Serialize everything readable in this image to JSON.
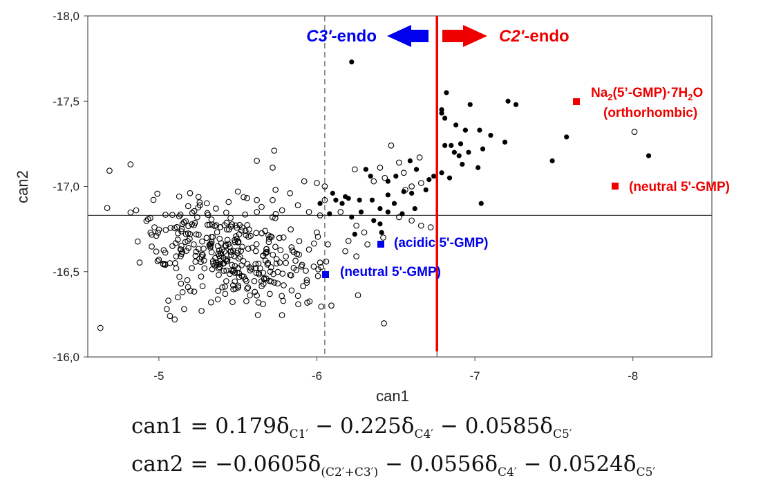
{
  "chart_data": {
    "type": "scatter",
    "xlabel": "can1",
    "ylabel": "can2",
    "xlim": [
      -4.55,
      -8.5
    ],
    "ylim": [
      -16.0,
      -18.0
    ],
    "x_reversed": true,
    "y_reversed": true,
    "x_ticks": [
      "-5",
      "-6",
      "-7",
      "-8"
    ],
    "y_ticks": [
      "-18,0",
      "-17,5",
      "-17,0",
      "-16,5",
      "-16,0"
    ],
    "x_tick_values": [
      -5,
      -6,
      -7,
      -8
    ],
    "y_tick_values": [
      -18.0,
      -17.5,
      -17.0,
      -16.5,
      -16.0
    ],
    "reference_lines": {
      "horizontal_y": -16.83,
      "vertical_solid_gray_x": -6.76,
      "vertical_dashed_x": -6.05,
      "vertical_red_x": -6.76
    },
    "arrows": {
      "left_label_italic": "C3'",
      "left_label_rest": "-endo",
      "left_color": "#0000ee",
      "right_label_italic": "C2'",
      "right_label_rest": "-endo",
      "right_color": "#ee0000"
    },
    "annotations": [
      {
        "x": -7.7,
        "y": -17.5,
        "color": "#ee0000",
        "lines": [
          "Na2(5'-GMP)·7H2O",
          "(orthorhombic)"
        ]
      },
      {
        "x": -7.95,
        "y": -17.0,
        "color": "#ee0000",
        "lines": [
          "(neutral 5'-GMP)"
        ]
      },
      {
        "x": -6.4,
        "y": -16.66,
        "color": "#0000ee",
        "lines": [
          "(acidic 5'-GMP)"
        ]
      },
      {
        "x": -6.05,
        "y": -16.48,
        "color": "#0000ee",
        "lines": [
          "(neutral 5'-GMP)"
        ]
      }
    ],
    "series": [
      {
        "marker": "filled-circle",
        "color": "#000000",
        "points": [
          [
            -6.22,
            -17.73
          ],
          [
            -6.82,
            -17.55
          ],
          [
            -6.97,
            -17.48
          ],
          [
            -7.21,
            -17.5
          ],
          [
            -7.26,
            -17.48
          ],
          [
            -6.79,
            -17.45
          ],
          [
            -6.79,
            -17.43
          ],
          [
            -6.81,
            -17.4
          ],
          [
            -6.88,
            -17.36
          ],
          [
            -6.94,
            -17.33
          ],
          [
            -7.03,
            -17.33
          ],
          [
            -7.1,
            -17.3
          ],
          [
            -7.19,
            -17.26
          ],
          [
            -7.58,
            -17.29
          ],
          [
            -6.81,
            -17.24
          ],
          [
            -6.85,
            -17.24
          ],
          [
            -6.91,
            -17.25
          ],
          [
            -6.87,
            -17.2
          ],
          [
            -6.9,
            -17.18
          ],
          [
            -6.96,
            -17.2
          ],
          [
            -7.05,
            -17.22
          ],
          [
            -6.92,
            -17.13
          ],
          [
            -7.02,
            -17.11
          ],
          [
            -7.49,
            -17.15
          ],
          [
            -6.84,
            -17.05
          ],
          [
            -7.04,
            -16.9
          ],
          [
            -8.1,
            -17.18
          ],
          [
            -6.59,
            -17.15
          ],
          [
            -6.63,
            -17.1
          ],
          [
            -6.74,
            -17.06
          ],
          [
            -6.71,
            -17.04
          ],
          [
            -6.69,
            -16.98
          ],
          [
            -6.79,
            -17.08
          ],
          [
            -6.31,
            -17.1
          ],
          [
            -6.34,
            -17.06
          ],
          [
            -6.45,
            -17.03
          ],
          [
            -6.5,
            -17.06
          ],
          [
            -6.2,
            -16.93
          ],
          [
            -6.1,
            -16.96
          ],
          [
            -6.12,
            -16.92
          ],
          [
            -6.27,
            -16.92
          ],
          [
            -6.35,
            -16.92
          ],
          [
            -6.4,
            -16.87
          ],
          [
            -6.45,
            -16.95
          ],
          [
            -6.55,
            -16.97
          ],
          [
            -6.6,
            -16.96
          ],
          [
            -6.49,
            -16.9
          ],
          [
            -6.54,
            -16.84
          ],
          [
            -6.4,
            -16.78
          ],
          [
            -6.62,
            -16.87
          ],
          [
            -6.28,
            -16.85
          ],
          [
            -6.16,
            -16.9
          ],
          [
            -6.36,
            -16.8
          ],
          [
            -6.41,
            -16.73
          ],
          [
            -6.24,
            -16.72
          ],
          [
            -6.08,
            -16.84
          ],
          [
            -6.02,
            -16.9
          ],
          [
            -6.45,
            -16.85
          ],
          [
            -6.22,
            -16.82
          ],
          [
            -6.18,
            -16.94
          ]
        ]
      },
      {
        "marker": "open-circle",
        "color": "#000000",
        "points": [
          [
            -4.63,
            -16.17
          ],
          [
            -8.01,
            -17.32
          ],
          [
            -5.73,
            -17.21
          ],
          [
            -5.72,
            -17.11
          ],
          [
            -5.62,
            -17.15
          ],
          [
            -6.0,
            -17.02
          ],
          [
            -6.05,
            -17.0
          ],
          [
            -5.92,
            -17.03
          ],
          [
            -6.47,
            -17.24
          ],
          [
            -6.65,
            -17.17
          ],
          [
            -6.52,
            -17.14
          ],
          [
            -6.55,
            -17.08
          ],
          [
            -6.6,
            -17.0
          ],
          [
            -6.66,
            -17.02
          ],
          [
            -6.4,
            -17.11
          ],
          [
            -6.43,
            -17.05
          ],
          [
            -6.24,
            -17.1
          ],
          [
            -6.36,
            -17.03
          ],
          [
            -6.56,
            -16.98
          ],
          [
            -5.26,
            -16.89
          ],
          [
            -5.5,
            -16.97
          ],
          [
            -5.62,
            -16.92
          ],
          [
            -5.72,
            -16.92
          ],
          [
            -5.83,
            -16.96
          ],
          [
            -5.88,
            -16.89
          ],
          [
            -5.78,
            -16.86
          ],
          [
            -5.65,
            -16.88
          ],
          [
            -5.95,
            -16.85
          ],
          [
            -6.05,
            -16.92
          ],
          [
            -6.02,
            -16.83
          ],
          [
            -6.15,
            -16.85
          ],
          [
            -6.25,
            -16.77
          ],
          [
            -6.3,
            -16.73
          ],
          [
            -6.2,
            -16.68
          ],
          [
            -6.18,
            -16.62
          ],
          [
            -6.07,
            -16.66
          ],
          [
            -6.0,
            -16.73
          ],
          [
            -6.32,
            -16.66
          ],
          [
            -6.42,
            -16.7
          ],
          [
            -6.52,
            -16.82
          ],
          [
            -6.6,
            -16.8
          ],
          [
            -6.66,
            -16.77
          ],
          [
            -6.72,
            -16.76
          ],
          [
            -6.25,
            -16.59
          ],
          [
            -5.98,
            -16.53
          ],
          [
            -5.87,
            -16.51
          ],
          [
            -5.95,
            -16.63
          ],
          [
            -5.84,
            -16.39
          ],
          [
            -5.79,
            -16.42
          ],
          [
            -5.68,
            -16.46
          ],
          [
            -5.62,
            -16.36
          ],
          [
            -5.47,
            -16.42
          ],
          [
            -5.42,
            -16.37
          ],
          [
            -5.33,
            -16.32
          ],
          [
            -5.27,
            -16.27
          ],
          [
            -5.16,
            -16.28
          ],
          [
            -5.1,
            -16.22
          ],
          [
            -5.07,
            -16.24
          ],
          [
            -5.05,
            -16.28
          ],
          [
            -5.06,
            -16.33
          ],
          [
            -5.12,
            -16.35
          ],
          [
            -5.15,
            -16.38
          ],
          [
            -5.14,
            -16.43
          ],
          [
            -5.18,
            -16.45
          ],
          [
            -5.13,
            -16.47
          ],
          [
            -5.11,
            -16.52
          ],
          [
            -5.07,
            -16.55
          ],
          [
            -5.0,
            -16.57
          ],
          [
            -5.11,
            -16.59
          ],
          [
            -5.14,
            -16.63
          ]
        ]
      },
      {
        "marker": "open-circle-cluster",
        "color": "#000000",
        "center": [
          -5.45,
          -16.62
        ],
        "spread": [
          0.28,
          0.13
        ],
        "count": 330,
        "note": ""
      }
    ]
  },
  "equations": {
    "eq1_lhs": "can1",
    "eq1_rhs": "= 0.179δ",
    "eq1_s1": "C1′",
    "eq1_m1": " − 0.225δ",
    "eq1_s2": "C4′",
    "eq1_m2": " − 0.0585δ",
    "eq1_s3": "C5′",
    "eq2_lhs": "can2",
    "eq2_rhs": "= −0.0605δ",
    "eq2_s1": "(C2′+C3′)",
    "eq2_m1": " − 0.0556δ",
    "eq2_s2": "C4′",
    "eq2_m2": " − 0.0524δ",
    "eq2_s3": "C5′"
  }
}
